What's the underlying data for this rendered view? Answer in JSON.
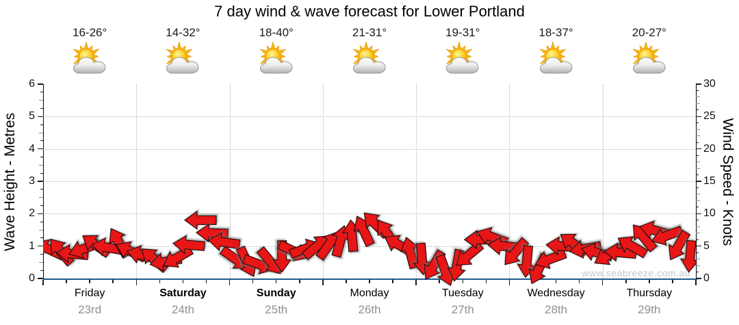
{
  "title": "7 day wind & wave forecast for Lower Portland",
  "watermark": "www.seabreeze.com.au",
  "axes": {
    "left": {
      "label": "Wave Height - Metres",
      "range": [
        0,
        6
      ],
      "ticks": [
        0,
        1,
        2,
        3,
        4,
        5,
        6
      ]
    },
    "right": {
      "label": "Wind Speed - Knots",
      "range": [
        0,
        30
      ],
      "ticks": [
        0,
        5,
        10,
        15,
        20,
        25,
        30
      ]
    }
  },
  "days": [
    {
      "name": "Friday",
      "date": "23rd",
      "bold": false,
      "temp_range": "16-26°",
      "icon": "sun-behind-cloud"
    },
    {
      "name": "Saturday",
      "date": "24th",
      "bold": true,
      "temp_range": "14-32°",
      "icon": "sun-behind-cloud"
    },
    {
      "name": "Sunday",
      "date": "25th",
      "bold": true,
      "temp_range": "18-40°",
      "icon": "sun-behind-cloud"
    },
    {
      "name": "Monday",
      "date": "26th",
      "bold": false,
      "temp_range": "21-31°",
      "icon": "sun-behind-cloud"
    },
    {
      "name": "Tuesday",
      "date": "27th",
      "bold": false,
      "temp_range": "19-31°",
      "icon": "sun-behind-cloud"
    },
    {
      "name": "Wednesday",
      "date": "28th",
      "bold": false,
      "temp_range": "18-37°",
      "icon": "sun-behind-cloud"
    },
    {
      "name": "Thursday",
      "date": "29th",
      "bold": false,
      "temp_range": "20-27°",
      "icon": "sun-behind-cloud"
    }
  ],
  "chart_data": {
    "type": "wind-arrow-series",
    "title": "7 day wind & wave forecast for Lower Portland",
    "categories": [
      "Friday 23rd",
      "Saturday 24th",
      "Sunday 25th",
      "Monday 26th",
      "Tuesday 27th",
      "Wednesday 28th",
      "Thursday 29th"
    ],
    "points_per_day": 8,
    "interval_hours": 3,
    "ylabel_left": "Wave Height - Metres",
    "ylabel_right": "Wind Speed - Knots",
    "ylim_left": [
      0,
      6
    ],
    "ylim_right": [
      0,
      30
    ],
    "legend_position": "none",
    "grid": "dotted horizontal at 1-5 m (5-25 kn), dotted vertical at day boundaries",
    "series": [
      {
        "name": "wind_speed_knots",
        "values": [
          4.5,
          4.2,
          3.8,
          4.6,
          5.2,
          4.8,
          5.6,
          4.2,
          3.6,
          3.0,
          2.6,
          3.2,
          5.2,
          9.0,
          7.0,
          5.6,
          3.0,
          2.5,
          2.2,
          2.6,
          3.4,
          4.2,
          4.6,
          5.0,
          5.2,
          5.8,
          6.6,
          7.4,
          8.4,
          7.0,
          5.2,
          4.0,
          3.0,
          2.0,
          1.2,
          2.0,
          3.6,
          6.0,
          6.4,
          5.0,
          4.0,
          2.6,
          1.4,
          3.0,
          5.0,
          5.4,
          4.6,
          4.0,
          3.6,
          4.0,
          5.0,
          6.4,
          7.4,
          6.6,
          5.0,
          3.4
        ]
      },
      {
        "name": "wind_arrow_heading_deg",
        "values": [
          205,
          230,
          185,
          160,
          215,
          190,
          240,
          205,
          195,
          220,
          170,
          150,
          185,
          180,
          182,
          188,
          35,
          65,
          20,
          50,
          90,
          25,
          340,
          320,
          305,
          285,
          265,
          245,
          225,
          235,
          210,
          255,
          85,
          120,
          70,
          100,
          140,
          180,
          200,
          185,
          130,
          95,
          115,
          160,
          185,
          215,
          170,
          195,
          150,
          185,
          210,
          230,
          195,
          160,
          120,
          95
        ]
      }
    ],
    "heading_convention": "degrees clockwise of on-screen arrow, 0 = pointing right"
  },
  "colors": {
    "arrow_red": "#e81212",
    "arrow_outline": "#1a0a0a",
    "x_axis_blue": "#1f5a8c",
    "grid_gray": "#b4b4b4",
    "date_gray": "#8f8f8f",
    "watermark_gray": "#c3c7cb",
    "temp_text": "#1a1a1a"
  }
}
